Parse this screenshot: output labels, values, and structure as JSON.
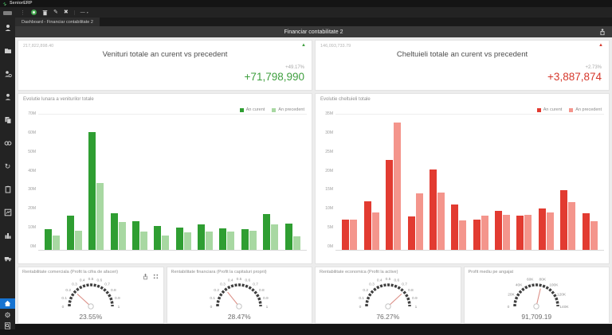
{
  "window": {
    "title": "SeniorERP",
    "tab": "Dashboard - Financiar contabilitate 2",
    "page_title": "Financiar contabilitate 2"
  },
  "toolbar": {
    "dropdown_label": "—",
    "caret": "▾",
    "more_glyph": "⋮",
    "edit_glyph": "✎",
    "close_glyph": "✖"
  },
  "kpis": [
    {
      "corner_value": "217,822,898.40",
      "title": "Venituri totale an curent vs precedent",
      "delta_pct": "+49.17%",
      "delta_value": "+71,798,990",
      "trend_icon": "▲",
      "color": "#3f9f3f"
    },
    {
      "corner_value": "146,093,733.79",
      "title": "Cheltuieli totale an curent vs precedent",
      "delta_pct": "+2.73%",
      "delta_value": "+3,887,874",
      "trend_icon": "▲",
      "color": "#d6382c"
    }
  ],
  "chart_data": [
    {
      "type": "bar",
      "title": "Evolutie lunara a veniturilor totale",
      "ymax": 70,
      "yticks": [
        "70M",
        "60M",
        "50M",
        "40M",
        "30M",
        "20M",
        "10M",
        "0M"
      ],
      "ylim": [
        0,
        70
      ],
      "unit": "millions",
      "legend_position": "top-right",
      "legend": [
        {
          "name": "An curent",
          "color": "#2f9e32"
        },
        {
          "name": "An precedent",
          "color": "#a8d8a2"
        }
      ],
      "series": [
        {
          "name": "An curent",
          "color": "#2f9e32",
          "values": [
            10.5,
            17.5,
            61,
            19,
            15,
            12.5,
            11.5,
            13,
            11,
            10.5,
            18.5,
            13.5
          ]
        },
        {
          "name": "An precedent",
          "color": "#a8d8a2",
          "values": [
            7.5,
            10,
            34.5,
            14.5,
            9.5,
            7.5,
            9,
            9.5,
            9.5,
            10,
            13,
            7
          ]
        }
      ]
    },
    {
      "type": "bar",
      "title": "Evolutie cheltuieli totale",
      "ymax": 35,
      "yticks": [
        "35M",
        "30M",
        "25M",
        "20M",
        "15M",
        "10M",
        "5M",
        "0M"
      ],
      "ylim": [
        0,
        35
      ],
      "unit": "millions",
      "legend_position": "top-right",
      "legend": [
        {
          "name": "An curent",
          "color": "#e23b31"
        },
        {
          "name": "An precedent",
          "color": "#f4958c"
        }
      ],
      "series": [
        {
          "name": "An curent",
          "color": "#e23b31",
          "values": [
            7.8,
            12.6,
            23.2,
            8.7,
            20.8,
            11.8,
            7.9,
            10,
            8.9,
            10.8,
            15.5,
            9.4
          ]
        },
        {
          "name": "An precedent",
          "color": "#f4958c",
          "values": [
            7.8,
            9.6,
            33,
            14.6,
            14.8,
            7.6,
            8.8,
            9.1,
            9,
            9.6,
            12.3,
            7.5
          ]
        }
      ]
    },
    {
      "type": "gauge",
      "title": "Rentabilitate comerciala (Profit la cifra de afaceri)",
      "ticks": [
        "0",
        "0.1",
        "0.2",
        "0.3",
        "0.4",
        "0.5",
        "0.6",
        "0.7",
        "0.8",
        "0.9",
        "1"
      ],
      "min": 0,
      "max": 1,
      "value": 0.2355,
      "value_label": "23.55%"
    },
    {
      "type": "gauge",
      "title": "Rentabilitate financiara (Profit la capitaluri proprii)",
      "ticks": [
        "0",
        "0.1",
        "0.2",
        "0.3",
        "0.4",
        "0.5",
        "0.6",
        "0.7",
        "0.8",
        "0.9",
        "1"
      ],
      "min": 0,
      "max": 1,
      "value": 0.2847,
      "value_label": "28.47%"
    },
    {
      "type": "gauge",
      "title": "Rentabilitate economica (Profit la active)",
      "ticks": [
        "0",
        "0.1",
        "0.2",
        "0.3",
        "0.4",
        "0.5",
        "0.6",
        "0.7",
        "0.8",
        "0.9",
        "1"
      ],
      "min": 0,
      "max": 1,
      "value": 0.7627,
      "value_label": "76.27%"
    },
    {
      "type": "gauge",
      "title": "Profit mediu pe angajat",
      "ticks": [
        "0",
        "20K",
        "40K",
        "60K",
        "80K",
        "100K",
        "120K",
        "140K"
      ],
      "min": 0,
      "max": 160000,
      "value": 91709.19,
      "value_label": "91,709.19"
    }
  ],
  "theme": {
    "gauge_arc": "#3f3f3f",
    "gauge_needle": "#dc9087",
    "accent_green": "#2f9e32",
    "accent_red": "#e23b31"
  }
}
